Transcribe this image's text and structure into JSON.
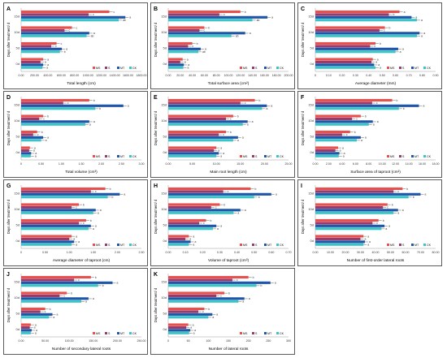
{
  "colors": {
    "MS": "#e8504d",
    "S": "#9a3a6a",
    "MT": "#1f56a8",
    "CK": "#3bc4c8",
    "frame": "#333333",
    "axis": "#999999"
  },
  "chart_data": [
    {
      "type": "bar",
      "orientation": "horizontal",
      "panel": "A",
      "xlabel": "Total length (cm)",
      "ylabel": "Days after treatment/ d",
      "categories": [
        "15d",
        "10d",
        "5d",
        "0d"
      ],
      "ticks": [
        "0.00",
        "200.00",
        "400.00",
        "600.00",
        "800.00",
        "1000.00",
        "1200.00",
        "1400.00",
        "1600.00",
        "1800.00"
      ],
      "xlim": [
        0,
        1800
      ],
      "legend": [
        "MS",
        "S",
        "MT",
        "CK"
      ],
      "series": [
        {
          "name": "MS",
          "values": [
            1320,
            760,
            530,
            330
          ]
        },
        {
          "name": "S",
          "values": [
            1010,
            650,
            450,
            290
          ]
        },
        {
          "name": "MT",
          "values": [
            1560,
            1020,
            610,
            330
          ]
        },
        {
          "name": "CK",
          "values": [
            1460,
            980,
            580,
            320
          ]
        }
      ],
      "labels": [
        [
          "c",
          "c",
          "c",
          "a"
        ],
        [
          "c",
          "c",
          "c",
          "a"
        ],
        [
          "a",
          "a",
          "a",
          "a"
        ],
        [
          "ab",
          "ab",
          "b",
          "a"
        ]
      ]
    },
    {
      "type": "bar",
      "orientation": "horizontal",
      "panel": "B",
      "xlabel": "Total surface area (cm²)",
      "ylabel": "Days after treatment/ d",
      "categories": [
        "15d",
        "10d",
        "5d",
        "0d"
      ],
      "ticks": [
        "0.00",
        "20.00",
        "40.00",
        "60.00",
        "80.00",
        "100.00",
        "120.00",
        "140.00",
        "160.00",
        "180.00",
        "200.00"
      ],
      "xlim": [
        0,
        200
      ],
      "legend": [
        "MS",
        "S",
        "MT",
        "CK"
      ],
      "series": [
        {
          "name": "MS",
          "values": [
            120,
            60,
            40,
            24
          ]
        },
        {
          "name": "S",
          "values": [
            85,
            52,
            33,
            20
          ]
        },
        {
          "name": "MT",
          "values": [
            165,
            128,
            54,
            26
          ]
        },
        {
          "name": "CK",
          "values": [
            140,
            105,
            50,
            25
          ]
        }
      ],
      "labels": [
        [
          "b",
          "b",
          "b",
          "a"
        ],
        [
          "c",
          "c",
          "c",
          "a"
        ],
        [
          "a",
          "a",
          "a",
          "a"
        ],
        [
          "ab",
          "ab",
          "ab",
          "a"
        ]
      ]
    },
    {
      "type": "bar",
      "orientation": "horizontal",
      "panel": "C",
      "xlabel": "Average diameter (mm)",
      "ylabel": "Days after treatment/ d",
      "categories": [
        "15d",
        "10d",
        "5d",
        "0d"
      ],
      "ticks": [
        "0",
        "0.10",
        "0.20",
        "0.30",
        "0.40",
        "0.50",
        "0.60",
        "0.70",
        "0.80",
        "0.90"
      ],
      "xlim": [
        0,
        0.9
      ],
      "legend": [
        "MS",
        "S",
        "MT",
        "CK"
      ],
      "series": [
        {
          "name": "MS",
          "values": [
            0.63,
            0.52,
            0.45,
            0.43
          ]
        },
        {
          "name": "S",
          "values": [
            0.55,
            0.48,
            0.41,
            0.42
          ]
        },
        {
          "name": "MT",
          "values": [
            0.72,
            0.78,
            0.62,
            0.44
          ]
        },
        {
          "name": "CK",
          "values": [
            0.76,
            0.76,
            0.6,
            0.45
          ]
        }
      ],
      "labels": [
        [
          "a",
          "b",
          "b",
          "a"
        ],
        [
          "b",
          "c",
          "c",
          "a"
        ],
        [
          "a",
          "a",
          "a",
          "a"
        ],
        [
          "a",
          "a",
          "a",
          "a"
        ]
      ]
    },
    {
      "type": "bar",
      "orientation": "horizontal",
      "panel": "D",
      "xlabel": "Total volume (cm³)",
      "ylabel": "Days after treatment/ d",
      "categories": [
        "15d",
        "10d",
        "5d",
        "0d"
      ],
      "ticks": [
        "0",
        "0.50",
        "1.00",
        "1.50",
        "2.00",
        "2.50",
        "3.00"
      ],
      "xlim": [
        0,
        3
      ],
      "legend": [
        "MS",
        "S",
        "MT",
        "CK"
      ],
      "series": [
        {
          "name": "MS",
          "values": [
            1.7,
            0.55,
            0.4,
            0.22
          ]
        },
        {
          "name": "S",
          "values": [
            1.05,
            0.45,
            0.3,
            0.2
          ]
        },
        {
          "name": "MT",
          "values": [
            2.55,
            1.7,
            0.55,
            0.25
          ]
        },
        {
          "name": "CK",
          "values": [
            1.85,
            1.6,
            0.5,
            0.24
          ]
        }
      ],
      "labels": [
        [
          "b",
          "b",
          "b",
          "a"
        ],
        [
          "c",
          "c",
          "c",
          "a"
        ],
        [
          "a",
          "a",
          "a",
          "a"
        ],
        [
          "b",
          "a",
          "a",
          "a"
        ]
      ]
    },
    {
      "type": "bar",
      "orientation": "horizontal",
      "panel": "E",
      "xlabel": "Main root length (cm)",
      "ylabel": "Days after treatment/ d",
      "categories": [
        "15d",
        "10d",
        "5d",
        "0d"
      ],
      "ticks": [
        "0.00",
        "5.00",
        "10.00",
        "15.00",
        "20.00",
        "25.00"
      ],
      "xlim": [
        0,
        25
      ],
      "legend": [
        "MS",
        "S",
        "MT",
        "CK"
      ],
      "series": [
        {
          "name": "MS",
          "values": [
            18,
            13.5,
            12,
            10
          ]
        },
        {
          "name": "S",
          "values": [
            15,
            12,
            10.5,
            9.5
          ]
        },
        {
          "name": "MT",
          "values": [
            20.5,
            16.5,
            14.5,
            10.5
          ]
        },
        {
          "name": "CK",
          "values": [
            19.5,
            15.5,
            13.5,
            10
          ]
        }
      ],
      "labels": [
        [
          "b",
          "b",
          "b",
          "a"
        ],
        [
          "c",
          "c",
          "c",
          "a"
        ],
        [
          "a",
          "a",
          "a",
          "a"
        ],
        [
          "a",
          "a",
          "a",
          "a"
        ]
      ]
    },
    {
      "type": "bar",
      "orientation": "horizontal",
      "panel": "F",
      "xlabel": "Surface area of taproot (cm²)",
      "ylabel": "Days after treatment/ d",
      "categories": [
        "15d",
        "10d",
        "5d",
        "0d"
      ],
      "ticks": [
        "0.00",
        "2.00",
        "4.00",
        "6.00",
        "8.00",
        "10.00",
        "12.00",
        "14.00",
        "16.00",
        "18.00"
      ],
      "xlim": [
        0,
        18
      ],
      "legend": [
        "MS",
        "S",
        "MT",
        "CK"
      ],
      "series": [
        {
          "name": "MS",
          "values": [
            11.5,
            6.8,
            5.2,
            3.4
          ]
        },
        {
          "name": "S",
          "values": [
            8.5,
            5.5,
            4,
            3
          ]
        },
        {
          "name": "MT",
          "values": [
            15.5,
            8.6,
            6.8,
            3.6
          ]
        },
        {
          "name": "CK",
          "values": [
            12.5,
            8,
            6.2,
            3.5
          ]
        }
      ],
      "labels": [
        [
          "b",
          "b",
          "b",
          "a"
        ],
        [
          "c",
          "c",
          "c",
          "a"
        ],
        [
          "a",
          "a",
          "a",
          "a"
        ],
        [
          "b",
          "a",
          "a",
          "a"
        ]
      ]
    },
    {
      "type": "bar",
      "orientation": "horizontal",
      "panel": "G",
      "xlabel": "Average diameter of taproot (cm)",
      "ylabel": "Days after treatment/ d",
      "categories": [
        "15d",
        "10d",
        "5d",
        "0d"
      ],
      "ticks": [
        "0",
        "0.50",
        "1.00",
        "1.50",
        "2.00",
        "2.50"
      ],
      "xlim": [
        0,
        2.5
      ],
      "legend": [
        "MS",
        "S",
        "MT",
        "CK"
      ],
      "series": [
        {
          "name": "MS",
          "values": [
            1.75,
            1.2,
            1.35,
            1.05
          ]
        },
        {
          "name": "S",
          "values": [
            1.45,
            1.05,
            1.2,
            1.0
          ]
        },
        {
          "name": "MT",
          "values": [
            2.05,
            1.55,
            1.45,
            1.1
          ]
        },
        {
          "name": "CK",
          "values": [
            1.8,
            1.5,
            1.4,
            1.05
          ]
        }
      ],
      "labels": [
        [
          "b",
          "b",
          "b",
          "a"
        ],
        [
          "c",
          "c",
          "c",
          "a"
        ],
        [
          "a",
          "a",
          "a",
          "a"
        ],
        [
          "b",
          "a",
          "a",
          "a"
        ]
      ]
    },
    {
      "type": "bar",
      "orientation": "horizontal",
      "panel": "H",
      "xlabel": "Volume of taproot (cm³)",
      "ylabel": "Days after treatment/ d",
      "categories": [
        "15d",
        "10d",
        "5d",
        "0d"
      ],
      "ticks": [
        "0.00",
        "0.10",
        "0.20",
        "0.30",
        "0.40",
        "0.50",
        "0.60",
        "0.70"
      ],
      "xlim": [
        0,
        0.7
      ],
      "legend": [
        "MS",
        "S",
        "MT",
        "CK"
      ],
      "series": [
        {
          "name": "MS",
          "values": [
            0.48,
            0.3,
            0.22,
            0.12
          ]
        },
        {
          "name": "S",
          "values": [
            0.32,
            0.25,
            0.18,
            0.1
          ]
        },
        {
          "name": "MT",
          "values": [
            0.6,
            0.42,
            0.28,
            0.13
          ]
        },
        {
          "name": "CK",
          "values": [
            0.5,
            0.38,
            0.26,
            0.12
          ]
        }
      ],
      "labels": [
        [
          "b",
          "b",
          "b",
          "a"
        ],
        [
          "c",
          "c",
          "c",
          "a"
        ],
        [
          "a",
          "a",
          "a",
          "a"
        ],
        [
          "b",
          "a",
          "a",
          "a"
        ]
      ]
    },
    {
      "type": "bar",
      "orientation": "horizontal",
      "panel": "I",
      "xlabel": "Number of first-order lateral roots",
      "ylabel": "Days after treatment/ d",
      "categories": [
        "15d",
        "10d",
        "5d",
        "0d"
      ],
      "ticks": [
        "0.00",
        "10.00",
        "20.00",
        "30.00",
        "40.00",
        "50.00",
        "60.00",
        "70.00",
        "80.00"
      ],
      "xlim": [
        0,
        80
      ],
      "legend": [
        "MS",
        "S",
        "MT",
        "CK"
      ],
      "series": [
        {
          "name": "MS",
          "values": [
            58,
            48,
            42,
            32
          ]
        },
        {
          "name": "S",
          "values": [
            52,
            45,
            38,
            30
          ]
        },
        {
          "name": "MT",
          "values": [
            70,
            55,
            46,
            33
          ]
        },
        {
          "name": "CK",
          "values": [
            62,
            52,
            44,
            32
          ]
        }
      ],
      "labels": [
        [
          "b",
          "b",
          "b",
          "a"
        ],
        [
          "c",
          "c",
          "c",
          "a"
        ],
        [
          "a",
          "a",
          "a",
          "a"
        ],
        [
          "b",
          "a",
          "a",
          "a"
        ]
      ]
    },
    {
      "type": "bar",
      "orientation": "horizontal",
      "panel": "J",
      "xlabel": "Number of secondary lateral roots",
      "ylabel": "Days after treatment/ d",
      "categories": [
        "15d",
        "10d",
        "5d",
        "0d"
      ],
      "ticks": [
        "0.00",
        "50.00",
        "100.00",
        "150.00",
        "200.00",
        "250.00"
      ],
      "xlim": [
        0,
        250
      ],
      "legend": [
        "MS",
        "S",
        "MT",
        "CK"
      ],
      "series": [
        {
          "name": "MS",
          "values": [
            145,
            95,
            50,
            20
          ]
        },
        {
          "name": "S",
          "values": [
            110,
            80,
            40,
            18
          ]
        },
        {
          "name": "MT",
          "values": [
            190,
            140,
            65,
            22
          ]
        },
        {
          "name": "CK",
          "values": [
            160,
            125,
            58,
            20
          ]
        }
      ],
      "labels": [
        [
          "b",
          "b",
          "b",
          "a"
        ],
        [
          "c",
          "c",
          "c",
          "a"
        ],
        [
          "a",
          "a",
          "a",
          "a"
        ],
        [
          "b",
          "a",
          "a",
          "a"
        ]
      ]
    },
    {
      "type": "bar",
      "orientation": "horizontal",
      "panel": "K",
      "xlabel": "Number of lateral roots",
      "ylabel": "Days after treatment/ d",
      "categories": [
        "15d",
        "10d",
        "5d",
        "0d"
      ],
      "ticks": [
        "0",
        "50",
        "100",
        "150",
        "200",
        "250",
        "300"
      ],
      "xlim": [
        0,
        300
      ],
      "legend": [
        "MS",
        "S",
        "MT",
        "CK"
      ],
      "series": [
        {
          "name": "MS",
          "values": [
            200,
            140,
            90,
            50
          ]
        },
        {
          "name": "S",
          "values": [
            160,
            120,
            75,
            45
          ]
        },
        {
          "name": "MT",
          "values": [
            255,
            190,
            110,
            55
          ]
        },
        {
          "name": "CK",
          "values": [
            220,
            175,
            100,
            52
          ]
        }
      ],
      "labels": [
        [
          "b",
          "b",
          "b",
          "a"
        ],
        [
          "c",
          "c",
          "c",
          "a"
        ],
        [
          "a",
          "a",
          "a",
          "a"
        ],
        [
          "b",
          "a",
          "a",
          "a"
        ]
      ]
    }
  ]
}
